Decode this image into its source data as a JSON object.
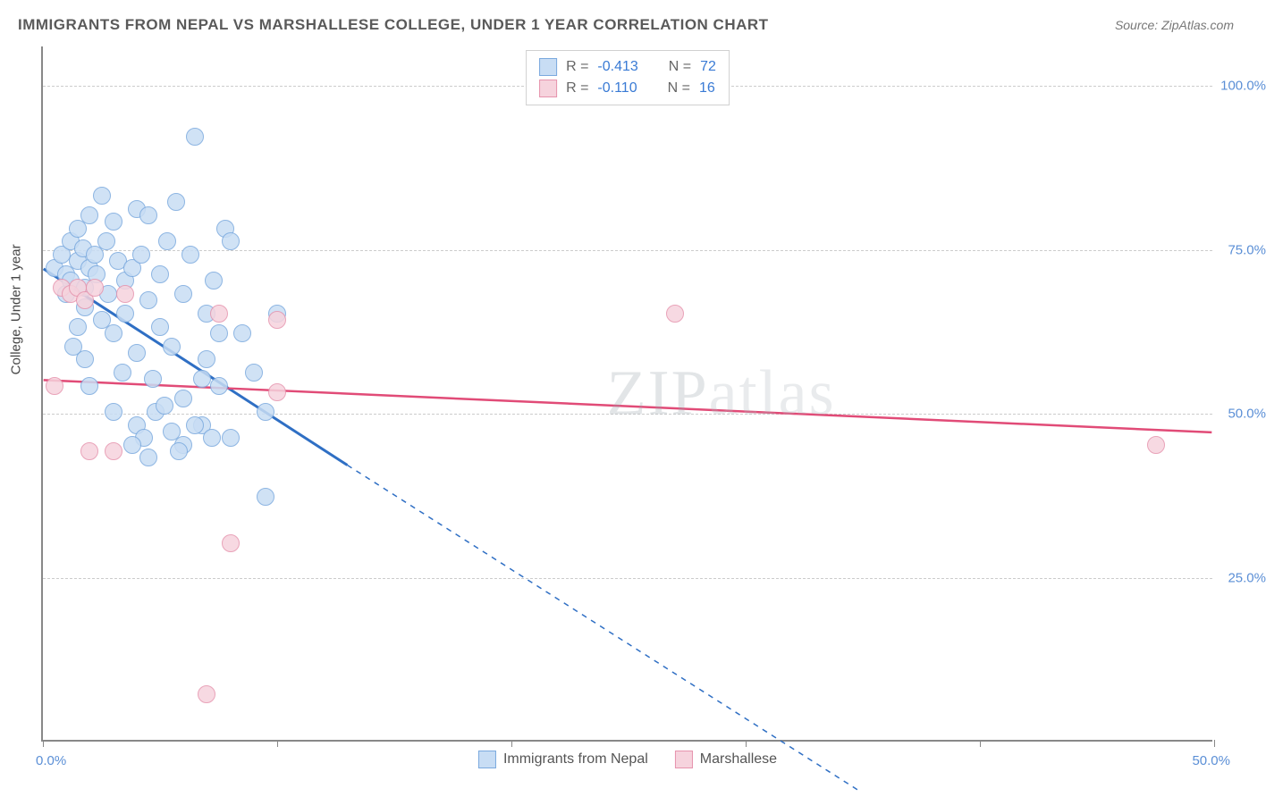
{
  "title": "IMMIGRANTS FROM NEPAL VS MARSHALLESE COLLEGE, UNDER 1 YEAR CORRELATION CHART",
  "source": "Source: ZipAtlas.com",
  "watermark": "ZIPatlas",
  "y_axis_title": "College, Under 1 year",
  "chart": {
    "type": "scatter",
    "xlim": [
      0,
      50
    ],
    "ylim": [
      0,
      106
    ],
    "x_ticks": [
      0,
      10,
      20,
      30,
      40,
      50
    ],
    "y_gridlines": [
      25,
      50,
      75,
      100
    ],
    "y_labels": [
      "25.0%",
      "50.0%",
      "75.0%",
      "100.0%"
    ],
    "x_label_min": "0.0%",
    "x_label_max": "50.0%",
    "background_color": "#ffffff",
    "axis_color": "#888888",
    "grid_color": "#cccccc",
    "series": [
      {
        "name": "Immigrants from Nepal",
        "fill": "#c8ddf4",
        "stroke": "#7aa9de",
        "line_color": "#2f6fc4",
        "line_width": 3,
        "marker_r": 10,
        "R": "-0.413",
        "N": "72",
        "trend": {
          "x1": 0,
          "y1": 72,
          "x2": 13,
          "y2": 42,
          "dashed_ext": {
            "x2": 35,
            "y2": -8
          }
        },
        "points": [
          [
            0.5,
            72
          ],
          [
            0.8,
            74
          ],
          [
            1.0,
            71
          ],
          [
            1.0,
            68
          ],
          [
            1.2,
            76
          ],
          [
            1.2,
            70
          ],
          [
            1.3,
            60
          ],
          [
            1.5,
            78
          ],
          [
            1.5,
            73
          ],
          [
            1.7,
            75
          ],
          [
            1.8,
            69
          ],
          [
            1.8,
            66
          ],
          [
            2.0,
            72
          ],
          [
            2.0,
            80
          ],
          [
            2.2,
            74
          ],
          [
            2.3,
            71
          ],
          [
            2.5,
            83
          ],
          [
            2.5,
            64
          ],
          [
            2.7,
            76
          ],
          [
            2.8,
            68
          ],
          [
            3.0,
            79
          ],
          [
            3.0,
            62
          ],
          [
            3.2,
            73
          ],
          [
            3.4,
            56
          ],
          [
            3.5,
            70
          ],
          [
            3.5,
            65
          ],
          [
            3.8,
            72
          ],
          [
            4.0,
            81
          ],
          [
            4.0,
            59
          ],
          [
            4.2,
            74
          ],
          [
            4.5,
            80
          ],
          [
            4.5,
            67
          ],
          [
            4.7,
            55
          ],
          [
            5.0,
            71
          ],
          [
            5.0,
            63
          ],
          [
            5.3,
            76
          ],
          [
            5.5,
            60
          ],
          [
            5.7,
            82
          ],
          [
            6.0,
            52
          ],
          [
            6.0,
            68
          ],
          [
            6.3,
            74
          ],
          [
            6.5,
            92
          ],
          [
            6.8,
            48
          ],
          [
            7.0,
            65
          ],
          [
            7.0,
            58
          ],
          [
            7.3,
            70
          ],
          [
            7.5,
            54
          ],
          [
            7.8,
            78
          ],
          [
            8.0,
            46
          ],
          [
            4.0,
            48
          ],
          [
            4.3,
            46
          ],
          [
            4.8,
            50
          ],
          [
            5.5,
            47
          ],
          [
            6.0,
            45
          ],
          [
            5.2,
            51
          ],
          [
            8.5,
            62
          ],
          [
            9.0,
            56
          ],
          [
            8.0,
            76
          ],
          [
            9.5,
            50
          ],
          [
            10.0,
            65
          ],
          [
            6.5,
            48
          ],
          [
            6.8,
            55
          ],
          [
            7.2,
            46
          ],
          [
            7.5,
            62
          ],
          [
            5.8,
            44
          ],
          [
            9.5,
            37
          ],
          [
            2.0,
            54
          ],
          [
            3.0,
            50
          ],
          [
            3.8,
            45
          ],
          [
            4.5,
            43
          ],
          [
            1.5,
            63
          ],
          [
            1.8,
            58
          ]
        ]
      },
      {
        "name": "Marshallese",
        "fill": "#f6d3dd",
        "stroke": "#e693ad",
        "line_color": "#e14b77",
        "line_width": 2.5,
        "marker_r": 10,
        "R": "-0.110",
        "N": "16",
        "trend": {
          "x1": 0,
          "y1": 55,
          "x2": 50,
          "y2": 47
        },
        "points": [
          [
            0.8,
            69
          ],
          [
            1.2,
            68
          ],
          [
            1.5,
            69
          ],
          [
            1.8,
            67
          ],
          [
            2.2,
            69
          ],
          [
            2.0,
            44
          ],
          [
            3.0,
            44
          ],
          [
            0.5,
            54
          ],
          [
            7.5,
            65
          ],
          [
            8.0,
            30
          ],
          [
            10.0,
            53
          ],
          [
            10.0,
            64
          ],
          [
            27.0,
            65
          ],
          [
            47.5,
            45
          ],
          [
            7.0,
            7
          ],
          [
            3.5,
            68
          ]
        ]
      }
    ]
  }
}
